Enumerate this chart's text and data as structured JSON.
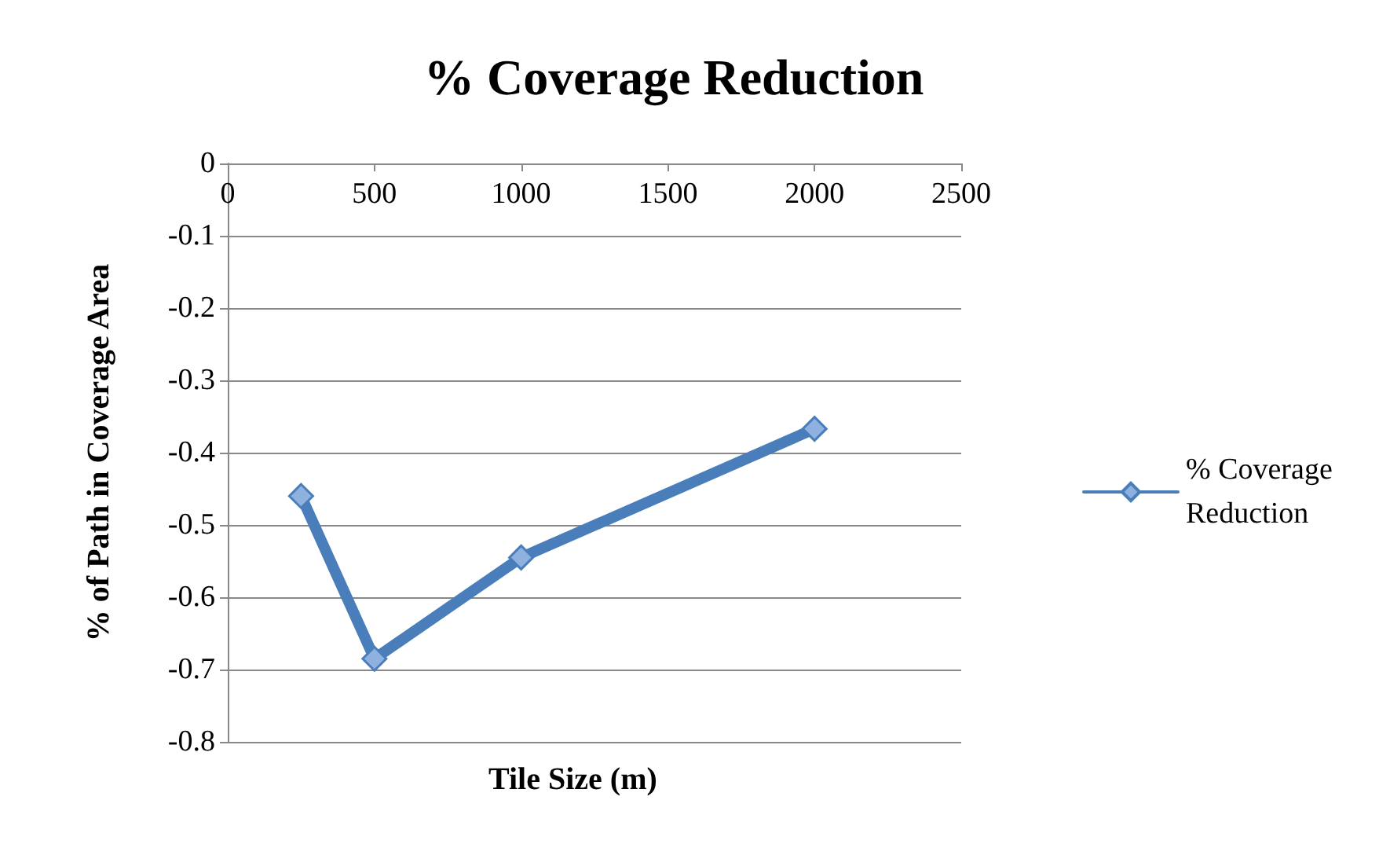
{
  "chart_data": {
    "type": "line",
    "title": "% Coverage Reduction",
    "xlabel": "Tile Size (m)",
    "ylabel": "% of Path in Coverage Area",
    "x": [
      250,
      500,
      1000,
      2000
    ],
    "series": [
      {
        "name": "% Coverage Reduction",
        "color": "#4a7ebb",
        "values": [
          -0.46,
          -0.685,
          -0.545,
          -0.367
        ]
      }
    ],
    "xlim": [
      0,
      2500
    ],
    "xticks": [
      0,
      500,
      1000,
      1500,
      2000,
      2500
    ],
    "ylim": [
      -0.8,
      0
    ],
    "yticks": [
      0,
      -0.1,
      -0.2,
      -0.3,
      -0.4,
      -0.5,
      -0.6,
      -0.7,
      -0.8
    ],
    "grid": "y",
    "legend": "right",
    "marker": "diamond",
    "line_style": "solid"
  }
}
